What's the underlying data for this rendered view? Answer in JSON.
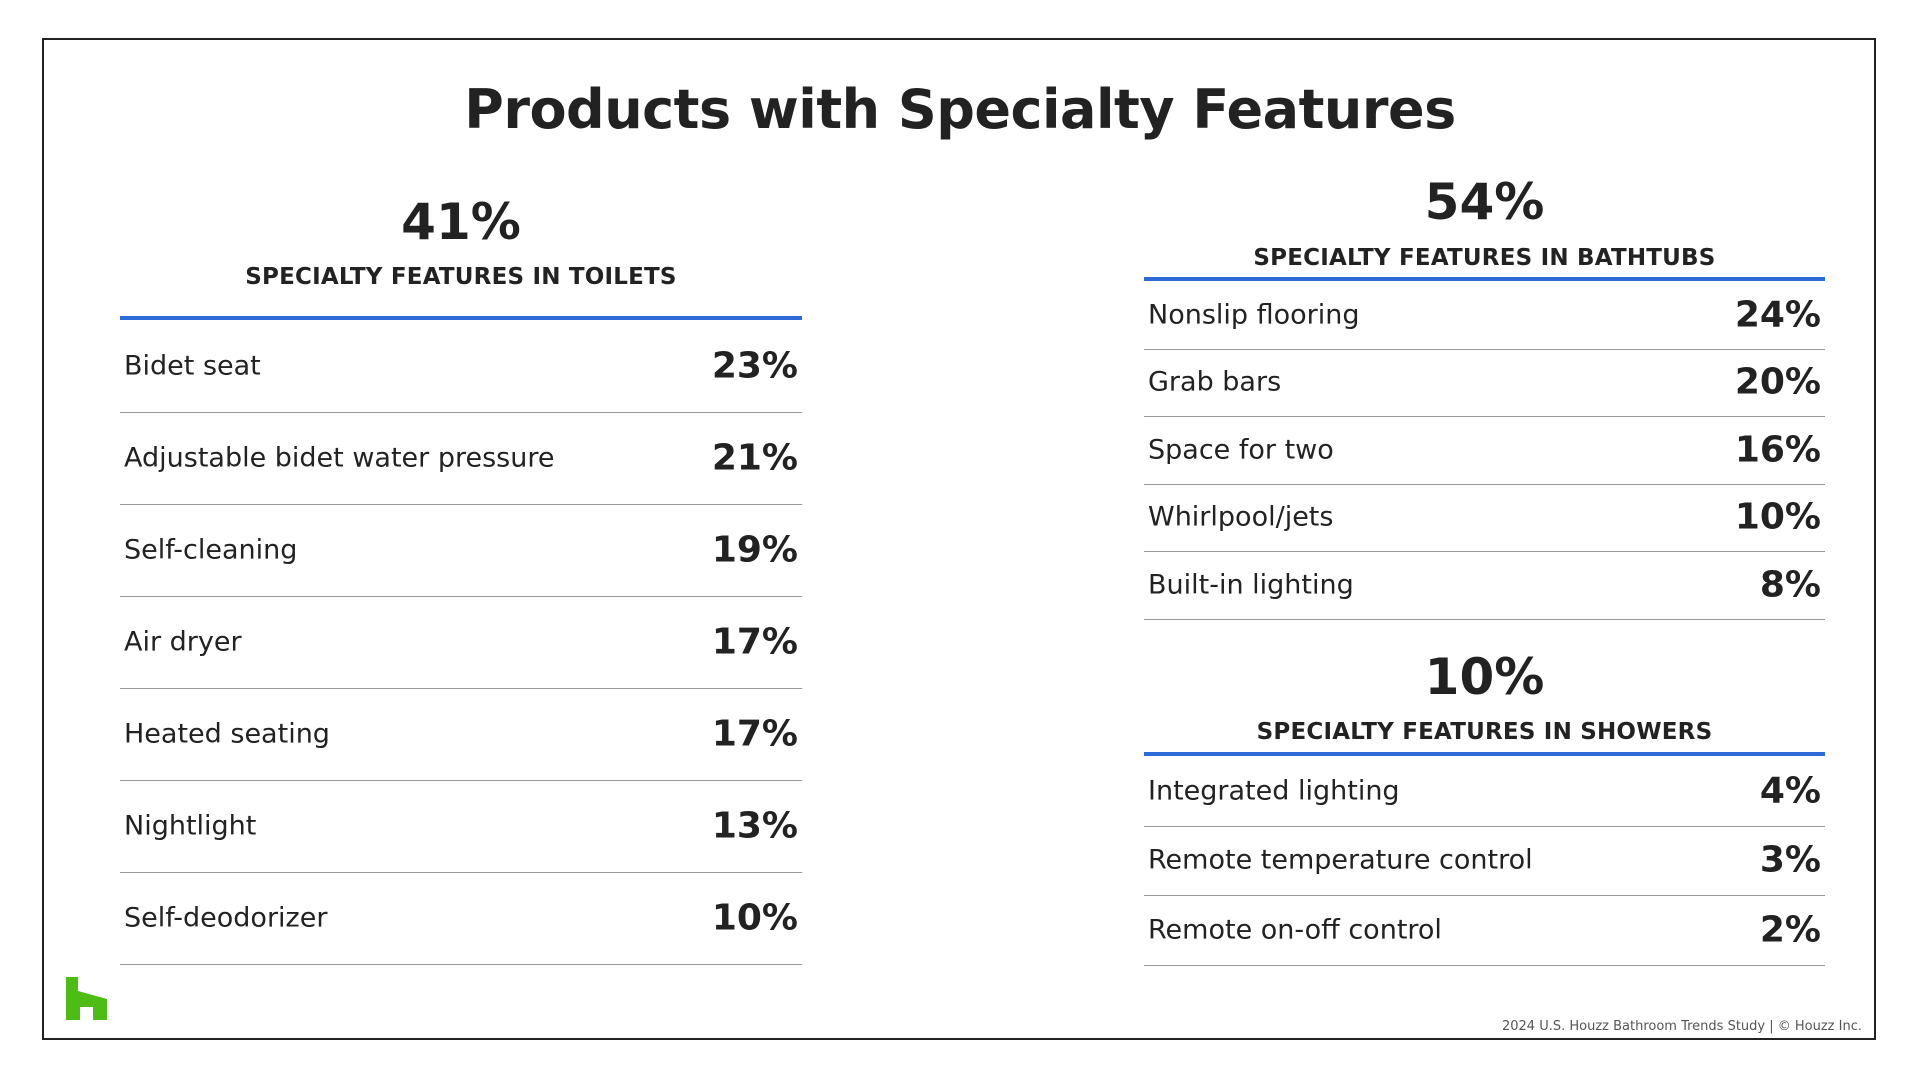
{
  "title": "Products with Specialty Features",
  "sections": [
    {
      "percent": "41%",
      "label": "SPECIALTY FEATURES IN TOILETS",
      "rows": [
        {
          "name": "Bidet seat",
          "value": "23%"
        },
        {
          "name": "Adjustable bidet water pressure",
          "value": "21%"
        },
        {
          "name": "Self-cleaning",
          "value": "19%"
        },
        {
          "name": "Air dryer",
          "value": "17%"
        },
        {
          "name": "Heated seating",
          "value": "17%"
        },
        {
          "name": "Nightlight",
          "value": "13%"
        },
        {
          "name": "Self-deodorizer",
          "value": "10%"
        }
      ]
    },
    {
      "percent": "54%",
      "label": "SPECIALTY FEATURES IN BATHTUBS",
      "rows": [
        {
          "name": "Nonslip flooring",
          "value": "24%"
        },
        {
          "name": "Grab bars",
          "value": "20%"
        },
        {
          "name": "Space for two",
          "value": "16%"
        },
        {
          "name": "Whirlpool/jets",
          "value": "10%"
        },
        {
          "name": "Built-in lighting",
          "value": "8%"
        }
      ]
    },
    {
      "percent": "10%",
      "label": "SPECIALTY FEATURES IN SHOWERS",
      "rows": [
        {
          "name": "Integrated lighting",
          "value": "4%"
        },
        {
          "name": "Remote temperature control",
          "value": "3%"
        },
        {
          "name": "Remote on-off control",
          "value": "2%"
        }
      ]
    }
  ],
  "footer": "2024 U.S. Houzz Bathroom Trends Study | © Houzz Inc."
}
